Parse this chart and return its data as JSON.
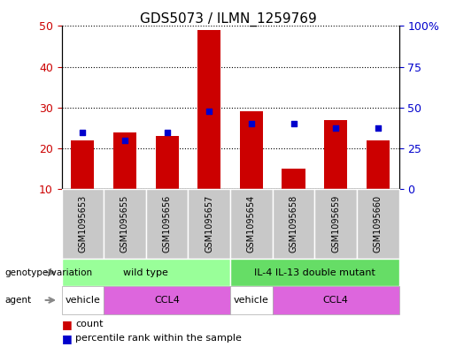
{
  "title": "GDS5073 / ILMN_1259769",
  "samples": [
    "GSM1095653",
    "GSM1095655",
    "GSM1095656",
    "GSM1095657",
    "GSM1095654",
    "GSM1095658",
    "GSM1095659",
    "GSM1095660"
  ],
  "counts": [
    22,
    24,
    23,
    49,
    29,
    15,
    27,
    22
  ],
  "percentiles": [
    24,
    22,
    24,
    29,
    26,
    26,
    25,
    25
  ],
  "bar_bottom": 10,
  "ylim_left": [
    10,
    50
  ],
  "ylim_right": [
    0,
    100
  ],
  "yticks_left": [
    10,
    20,
    30,
    40,
    50
  ],
  "yticks_right": [
    0,
    25,
    50,
    75,
    100
  ],
  "yticklabels_right": [
    "0",
    "25",
    "50",
    "75",
    "100%"
  ],
  "bar_color": "#cc0000",
  "dot_color": "#0000cc",
  "left_label_color": "#cc0000",
  "right_label_color": "#0000cc",
  "tick_fontsize": 9,
  "title_fontsize": 11,
  "sample_box_color": "#c8c8c8",
  "geno_groups": [
    {
      "label": "wild type",
      "start": 0,
      "end": 4,
      "color": "#99ff99"
    },
    {
      "label": "IL-4 IL-13 double mutant",
      "start": 4,
      "end": 8,
      "color": "#66dd66"
    }
  ],
  "agent_groups": [
    {
      "label": "vehicle",
      "start": 0,
      "end": 1,
      "color": "#ffffff"
    },
    {
      "label": "CCL4",
      "start": 1,
      "end": 4,
      "color": "#dd66dd"
    },
    {
      "label": "vehicle",
      "start": 4,
      "end": 5,
      "color": "#ffffff"
    },
    {
      "label": "CCL4",
      "start": 5,
      "end": 8,
      "color": "#dd66dd"
    }
  ]
}
